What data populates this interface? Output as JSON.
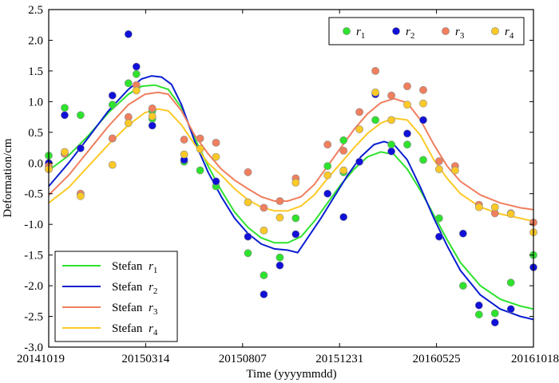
{
  "chart_data": {
    "type": "scatter",
    "title": "",
    "xlabel": "Time (yyyymmdd)",
    "ylabel": "Deformation/cm",
    "xlim": [
      0,
      730
    ],
    "ylim": [
      -3.0,
      2.5
    ],
    "yticks": [
      2.5,
      2.0,
      1.5,
      1.0,
      0.5,
      0.0,
      -0.5,
      -1.0,
      -1.5,
      -2.0,
      -2.5,
      -3.0
    ],
    "ytick_labels": [
      "2.5",
      "2.0",
      "1.5",
      "1.0",
      "0.5",
      "0.0",
      "-0.5",
      "-1.0",
      "-1.5",
      "-2.0",
      "-2.5",
      "-3.0"
    ],
    "xticks": [
      0,
      146,
      292,
      438,
      584,
      730
    ],
    "xtick_labels": [
      "20141019",
      "20150314",
      "20150807",
      "20151231",
      "20160525",
      "20161018"
    ],
    "x_unit": "days since 20141019",
    "grid": false,
    "scatter_series": [
      {
        "name": "r1",
        "label_base": "r",
        "label_sub": "1",
        "color": "#2ee22e",
        "points": [
          [
            0,
            0.12
          ],
          [
            0,
            -0.1
          ],
          [
            24,
            0.9
          ],
          [
            24,
            0.15
          ],
          [
            48,
            0.78
          ],
          [
            48,
            -0.52
          ],
          [
            96,
            0.95
          ],
          [
            96,
            0.4
          ],
          [
            120,
            1.3
          ],
          [
            132,
            1.45
          ],
          [
            156,
            0.85
          ],
          [
            156,
            0.72
          ],
          [
            204,
            0.02
          ],
          [
            228,
            -0.12
          ],
          [
            252,
            -0.38
          ],
          [
            300,
            -1.47
          ],
          [
            324,
            -1.83
          ],
          [
            348,
            -1.54
          ],
          [
            372,
            -0.9
          ],
          [
            420,
            -0.05
          ],
          [
            444,
            0.37
          ],
          [
            444,
            -0.15
          ],
          [
            492,
            0.7
          ],
          [
            516,
            0.3
          ],
          [
            540,
            0.3
          ],
          [
            564,
            0.05
          ],
          [
            588,
            -0.9
          ],
          [
            624,
            -2.0
          ],
          [
            648,
            -2.47
          ],
          [
            672,
            -2.45
          ],
          [
            696,
            -1.95
          ],
          [
            730,
            -1.5
          ]
        ]
      },
      {
        "name": "r2",
        "label_base": "r",
        "label_sub": "2",
        "color": "#1010d8",
        "points": [
          [
            0,
            0.0
          ],
          [
            24,
            0.78
          ],
          [
            48,
            0.24
          ],
          [
            96,
            1.1
          ],
          [
            120,
            2.1
          ],
          [
            132,
            1.57
          ],
          [
            156,
            0.61
          ],
          [
            204,
            0.05
          ],
          [
            252,
            -0.3
          ],
          [
            300,
            -1.2
          ],
          [
            324,
            -2.14
          ],
          [
            348,
            -1.67
          ],
          [
            372,
            -1.16
          ],
          [
            420,
            -0.5
          ],
          [
            444,
            -0.88
          ],
          [
            468,
            0.02
          ],
          [
            492,
            1.12
          ],
          [
            516,
            0.19
          ],
          [
            540,
            0.48
          ],
          [
            564,
            0.7
          ],
          [
            588,
            -1.2
          ],
          [
            624,
            -1.15
          ],
          [
            648,
            -2.32
          ],
          [
            672,
            -2.6
          ],
          [
            696,
            -2.38
          ],
          [
            730,
            -1.7
          ]
        ]
      },
      {
        "name": "r3",
        "label_base": "r",
        "label_sub": "3",
        "color": "#f07f5e",
        "points": [
          [
            0,
            -0.05
          ],
          [
            24,
            0.15
          ],
          [
            48,
            -0.5
          ],
          [
            96,
            0.4
          ],
          [
            120,
            0.75
          ],
          [
            132,
            1.27
          ],
          [
            156,
            0.89
          ],
          [
            204,
            0.38
          ],
          [
            228,
            0.4
          ],
          [
            252,
            0.33
          ],
          [
            300,
            -0.15
          ],
          [
            324,
            -0.73
          ],
          [
            348,
            -0.62
          ],
          [
            372,
            -0.25
          ],
          [
            420,
            0.3
          ],
          [
            444,
            0.2
          ],
          [
            468,
            0.83
          ],
          [
            492,
            1.5
          ],
          [
            516,
            1.1
          ],
          [
            540,
            1.25
          ],
          [
            564,
            1.19
          ],
          [
            588,
            0.03
          ],
          [
            612,
            -0.05
          ],
          [
            648,
            -0.68
          ],
          [
            672,
            -0.82
          ],
          [
            696,
            -0.82
          ],
          [
            730,
            -0.97
          ]
        ]
      },
      {
        "name": "r4",
        "label_base": "r",
        "label_sub": "4",
        "color": "#fcc927",
        "points": [
          [
            0,
            -0.1
          ],
          [
            24,
            0.18
          ],
          [
            48,
            -0.54
          ],
          [
            96,
            -0.03
          ],
          [
            120,
            0.65
          ],
          [
            132,
            1.18
          ],
          [
            156,
            0.76
          ],
          [
            204,
            0.14
          ],
          [
            228,
            0.23
          ],
          [
            252,
            0.1
          ],
          [
            300,
            -0.64
          ],
          [
            324,
            -1.1
          ],
          [
            348,
            -0.89
          ],
          [
            372,
            -0.32
          ],
          [
            420,
            -0.2
          ],
          [
            444,
            -0.12
          ],
          [
            468,
            0.55
          ],
          [
            492,
            1.15
          ],
          [
            516,
            0.7
          ],
          [
            540,
            0.95
          ],
          [
            564,
            0.97
          ],
          [
            588,
            -0.1
          ],
          [
            612,
            -0.12
          ],
          [
            648,
            -0.72
          ],
          [
            672,
            -0.72
          ],
          [
            696,
            -0.83
          ],
          [
            730,
            -1.13
          ]
        ]
      }
    ],
    "line_series": [
      {
        "name": "Stefan r1",
        "label_base": "Stefan ",
        "label_r": "r",
        "label_sub": "1",
        "color": "#2ee22e",
        "points": [
          [
            0,
            -0.12
          ],
          [
            30,
            0.12
          ],
          [
            60,
            0.45
          ],
          [
            90,
            0.82
          ],
          [
            120,
            1.12
          ],
          [
            140,
            1.25
          ],
          [
            160,
            1.27
          ],
          [
            180,
            1.2
          ],
          [
            200,
            0.9
          ],
          [
            220,
            0.4
          ],
          [
            240,
            -0.05
          ],
          [
            260,
            -0.45
          ],
          [
            280,
            -0.8
          ],
          [
            300,
            -1.05
          ],
          [
            320,
            -1.22
          ],
          [
            340,
            -1.3
          ],
          [
            360,
            -1.3
          ],
          [
            380,
            -1.2
          ],
          [
            400,
            -0.95
          ],
          [
            420,
            -0.65
          ],
          [
            440,
            -0.35
          ],
          [
            460,
            -0.1
          ],
          [
            480,
            0.1
          ],
          [
            500,
            0.18
          ],
          [
            520,
            0.14
          ],
          [
            540,
            -0.1
          ],
          [
            560,
            -0.45
          ],
          [
            580,
            -0.85
          ],
          [
            600,
            -1.25
          ],
          [
            620,
            -1.62
          ],
          [
            650,
            -2.0
          ],
          [
            680,
            -2.22
          ],
          [
            710,
            -2.33
          ],
          [
            730,
            -2.38
          ]
        ]
      },
      {
        "name": "Stefan r2",
        "label_base": "Stefan ",
        "label_r": "r",
        "label_sub": "2",
        "color": "#0a1ed0",
        "points": [
          [
            0,
            -0.38
          ],
          [
            30,
            0.0
          ],
          [
            60,
            0.42
          ],
          [
            90,
            0.85
          ],
          [
            120,
            1.2
          ],
          [
            140,
            1.37
          ],
          [
            155,
            1.42
          ],
          [
            170,
            1.4
          ],
          [
            185,
            1.28
          ],
          [
            200,
            0.95
          ],
          [
            220,
            0.35
          ],
          [
            240,
            -0.15
          ],
          [
            260,
            -0.55
          ],
          [
            280,
            -0.9
          ],
          [
            300,
            -1.15
          ],
          [
            320,
            -1.32
          ],
          [
            340,
            -1.4
          ],
          [
            360,
            -1.42
          ],
          [
            375,
            -1.46
          ],
          [
            390,
            -1.22
          ],
          [
            410,
            -0.9
          ],
          [
            430,
            -0.55
          ],
          [
            450,
            -0.2
          ],
          [
            470,
            0.1
          ],
          [
            490,
            0.3
          ],
          [
            505,
            0.35
          ],
          [
            520,
            0.3
          ],
          [
            540,
            0.05
          ],
          [
            560,
            -0.4
          ],
          [
            580,
            -0.9
          ],
          [
            600,
            -1.35
          ],
          [
            620,
            -1.75
          ],
          [
            650,
            -2.15
          ],
          [
            680,
            -2.38
          ],
          [
            710,
            -2.5
          ],
          [
            730,
            -2.55
          ]
        ]
      },
      {
        "name": "Stefan r3",
        "label_base": "Stefan ",
        "label_r": "r",
        "label_sub": "3",
        "color": "#f07f5e",
        "points": [
          [
            0,
            -0.52
          ],
          [
            30,
            -0.2
          ],
          [
            60,
            0.2
          ],
          [
            90,
            0.6
          ],
          [
            120,
            0.95
          ],
          [
            145,
            1.12
          ],
          [
            165,
            1.15
          ],
          [
            180,
            1.12
          ],
          [
            200,
            0.85
          ],
          [
            220,
            0.45
          ],
          [
            240,
            0.15
          ],
          [
            260,
            -0.1
          ],
          [
            280,
            -0.28
          ],
          [
            300,
            -0.42
          ],
          [
            320,
            -0.55
          ],
          [
            340,
            -0.62
          ],
          [
            360,
            -0.62
          ],
          [
            380,
            -0.55
          ],
          [
            400,
            -0.35
          ],
          [
            420,
            -0.05
          ],
          [
            440,
            0.25
          ],
          [
            460,
            0.55
          ],
          [
            480,
            0.8
          ],
          [
            500,
            0.98
          ],
          [
            520,
            1.05
          ],
          [
            540,
            0.98
          ],
          [
            560,
            0.7
          ],
          [
            580,
            0.3
          ],
          [
            600,
            -0.05
          ],
          [
            620,
            -0.3
          ],
          [
            650,
            -0.52
          ],
          [
            680,
            -0.65
          ],
          [
            710,
            -0.73
          ],
          [
            730,
            -0.76
          ]
        ]
      },
      {
        "name": "Stefan r4",
        "label_base": "Stefan ",
        "label_r": "r",
        "label_sub": "4",
        "color": "#fcc927",
        "points": [
          [
            0,
            -0.65
          ],
          [
            30,
            -0.4
          ],
          [
            60,
            -0.05
          ],
          [
            90,
            0.3
          ],
          [
            120,
            0.62
          ],
          [
            145,
            0.82
          ],
          [
            165,
            0.88
          ],
          [
            180,
            0.85
          ],
          [
            200,
            0.62
          ],
          [
            220,
            0.3
          ],
          [
            240,
            0.0
          ],
          [
            260,
            -0.2
          ],
          [
            280,
            -0.42
          ],
          [
            300,
            -0.6
          ],
          [
            320,
            -0.72
          ],
          [
            340,
            -0.78
          ],
          [
            360,
            -0.78
          ],
          [
            380,
            -0.7
          ],
          [
            400,
            -0.52
          ],
          [
            420,
            -0.25
          ],
          [
            440,
            0.0
          ],
          [
            460,
            0.25
          ],
          [
            480,
            0.48
          ],
          [
            500,
            0.65
          ],
          [
            520,
            0.73
          ],
          [
            540,
            0.7
          ],
          [
            560,
            0.45
          ],
          [
            580,
            0.05
          ],
          [
            600,
            -0.25
          ],
          [
            620,
            -0.5
          ],
          [
            650,
            -0.72
          ],
          [
            680,
            -0.83
          ],
          [
            710,
            -0.9
          ],
          [
            730,
            -0.95
          ]
        ]
      }
    ],
    "legend_scatter_position": "top-right",
    "legend_lines_position": "bottom-left"
  }
}
